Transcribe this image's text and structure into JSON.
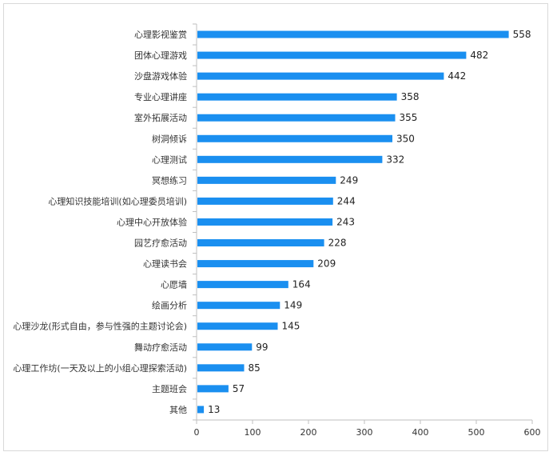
{
  "chart_data": {
    "type": "bar",
    "orientation": "horizontal",
    "categories": [
      "心理影视鉴赏",
      "团体心理游戏",
      "沙盘游戏体验",
      "专业心理讲座",
      "室外拓展活动",
      "树洞倾诉",
      "心理测试",
      "冥想练习",
      "心理知识技能培训(如心理委员培训)",
      "心理中心开放体验",
      "园艺疗愈活动",
      "心理读书会",
      "心愿墙",
      "绘画分析",
      "心理沙龙(形式自由，参与性强的主题讨论会)",
      "舞动疗愈活动",
      "心理工作坊(一天及以上的小组心理探索活动)",
      "主题班会",
      "其他"
    ],
    "values": [
      558,
      482,
      442,
      358,
      355,
      350,
      332,
      249,
      244,
      243,
      228,
      209,
      164,
      149,
      145,
      99,
      85,
      57,
      13
    ],
    "xlim": [
      0,
      600
    ],
    "xticks": [
      0,
      100,
      200,
      300,
      400,
      500,
      600
    ],
    "title": "",
    "xlabel": "",
    "ylabel": "",
    "grid": false,
    "bar_color": "#1a8ff0",
    "axis_color": "#bfbfbf"
  }
}
